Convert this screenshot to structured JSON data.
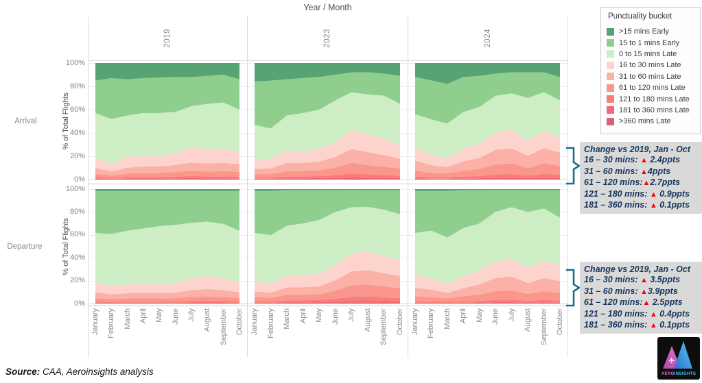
{
  "title": "Year / Month",
  "row_labels": [
    "Arrival",
    "Departure"
  ],
  "ylabel": "% of Total Flights",
  "legend": {
    "title": "Punctuality bucket"
  },
  "annotations": [
    {
      "title": "Change vs 2019, Jan - Oct",
      "lines": [
        "16 – 30 mins: ▲ 2.4ppts",
        "31 – 60 mins: ▲4ppts",
        "61 – 120 mins:▲2.7ppts",
        "121 – 180 mins: ▲ 0.9ppts",
        "181 – 360 mins: ▲ 0.1ppts"
      ]
    },
    {
      "title": "Change vs 2019, Jan - Oct",
      "lines": [
        "16 – 30 mins: ▲ 3.5ppts",
        "31 – 60 mins: ▲3.9ppts",
        "61 – 120 mins:▲ 2.5ppts",
        "121 – 180 mins: ▲ 0.4ppts",
        "181 – 360 mins: ▲ 0.1ppts"
      ]
    }
  ],
  "source": {
    "label": "Source:",
    "text": " CAA, Aeroinsights analysis"
  },
  "logo": {
    "text_left": "AERO",
    "text_right": "INSIGHTS"
  },
  "chart_data": {
    "type": "area",
    "stacked": true,
    "units": "percent_of_total_flights",
    "title": "Year / Month",
    "ylabel": "% of Total Flights",
    "ylim": [
      0,
      100
    ],
    "yticks": [
      "100%",
      "80%",
      "60%",
      "40%",
      "20%",
      "0%"
    ],
    "grid": true,
    "legend_position": "top-right",
    "x": [
      "January",
      "February",
      "March",
      "April",
      "May",
      "June",
      "July",
      "August",
      "September",
      "October"
    ],
    "rows": [
      "Arrival",
      "Departure"
    ],
    "columns": [
      "2019",
      "2023",
      "2024"
    ],
    "buckets": [
      {
        "label": ">15 mins Early",
        "color": "#57A373"
      },
      {
        "label": "15 to 1 mins Early",
        "color": "#90CE8E"
      },
      {
        "label": "0 to 15 mins Late",
        "color": "#CDEDC5"
      },
      {
        "label": "16 to 30 mins Late",
        "color": "#FCD4CD"
      },
      {
        "label": "31 to 60 mins Late",
        "color": "#FBB1A5"
      },
      {
        "label": "61 to 120 mins Late",
        "color": "#FA968C"
      },
      {
        "label": "121 to 180 mins Late",
        "color": "#F87E78"
      },
      {
        "label": "181 to 360 mins Late",
        "color": "#F16877"
      },
      {
        "label": ">360 mins Late",
        "color": "#D75F80"
      }
    ],
    "panels": {
      "arrival_2019": [
        [
          15,
          13,
          14,
          13,
          12.5,
          12,
          12,
          11,
          10,
          14
        ],
        [
          28,
          35,
          31,
          30,
          30.5,
          30,
          25,
          24,
          24,
          26
        ],
        [
          38,
          39,
          35,
          37,
          37,
          35.5,
          35.5,
          39,
          40,
          36
        ],
        [
          9,
          6,
          9.5,
          9,
          9,
          10,
          13,
          12,
          12,
          11
        ],
        [
          5,
          3.5,
          5,
          5.5,
          5.5,
          6,
          7,
          7,
          7,
          6.5
        ],
        [
          3,
          2,
          3,
          3.5,
          3.5,
          4,
          4.5,
          4,
          4.5,
          4
        ],
        [
          1.2,
          0.8,
          1.2,
          1.3,
          1.3,
          1.5,
          1.8,
          1.6,
          1.7,
          1.5
        ],
        [
          0.6,
          0.4,
          0.6,
          0.6,
          0.6,
          0.7,
          0.9,
          0.8,
          0.8,
          0.7
        ],
        [
          0.3,
          0.2,
          0.3,
          0.3,
          0.3,
          0.3,
          0.4,
          0.3,
          0.3,
          0.3
        ]
      ],
      "arrival_2023": [
        [
          16,
          15,
          14,
          13,
          12,
          10,
          8,
          8,
          9,
          11
        ],
        [
          37,
          41,
          31,
          30,
          28,
          22,
          17,
          19,
          19,
          24
        ],
        [
          31,
          26,
          30,
          33,
          33.5,
          35.5,
          32.5,
          34.5,
          37,
          35
        ],
        [
          7,
          8,
          11,
          10,
          11,
          13,
          16,
          15,
          14,
          12
        ],
        [
          4.5,
          5,
          7,
          7,
          7.5,
          9,
          12,
          11,
          10,
          8.5
        ],
        [
          3,
          3,
          4.5,
          4.5,
          5,
          6.5,
          9,
          8,
          7,
          6
        ],
        [
          1,
          1,
          1.6,
          1.6,
          1.8,
          2.3,
          3.2,
          2.7,
          2.4,
          2
        ],
        [
          0.4,
          0.5,
          0.8,
          0.8,
          0.9,
          1.1,
          1.5,
          1.3,
          1.1,
          0.9
        ],
        [
          0.2,
          0.2,
          0.3,
          0.3,
          0.3,
          0.4,
          0.6,
          0.5,
          0.4,
          0.4
        ]
      ],
      "arrival_2024": [
        [
          12,
          15,
          18,
          12,
          11,
          9,
          8,
          8,
          8,
          12
        ],
        [
          32,
          33.5,
          34,
          30,
          26.5,
          19,
          18,
          22,
          17,
          20
        ],
        [
          29,
          30.5,
          30,
          31.5,
          31.5,
          31,
          31,
          36.5,
          33,
          31.5
        ],
        [
          11,
          9,
          7.5,
          11,
          12,
          15,
          16,
          13,
          15,
          13.5
        ],
        [
          8.5,
          6.5,
          5.5,
          8,
          9.5,
          12.5,
          13,
          10.5,
          13,
          11.5
        ],
        [
          5,
          4,
          3.5,
          5,
          6,
          8.5,
          9,
          6.5,
          9,
          7.5
        ],
        [
          1.6,
          1.2,
          1,
          1.6,
          2,
          3,
          3.2,
          2.2,
          3.3,
          2.8
        ],
        [
          0.7,
          0.5,
          0.5,
          0.7,
          0.8,
          1,
          1.1,
          0.8,
          1.1,
          0.9
        ],
        [
          0.3,
          0.2,
          0.2,
          0.3,
          0.3,
          0.4,
          0.5,
          0.4,
          0.5,
          0.4
        ]
      ],
      "departure_2019": [
        [
          1.5,
          1.5,
          1.5,
          1.5,
          1.5,
          1.5,
          1.5,
          1.5,
          1.5,
          1.5
        ],
        [
          37,
          38,
          35,
          33,
          31,
          30,
          28,
          27,
          29,
          35
        ],
        [
          43,
          45.5,
          47,
          49,
          51,
          51,
          48.5,
          47.5,
          47.5,
          45
        ],
        [
          9,
          7.5,
          8,
          8,
          8,
          8.5,
          10.5,
          11.5,
          10.5,
          9
        ],
        [
          5,
          4,
          4.5,
          4.5,
          4.5,
          4.8,
          6,
          6.5,
          6,
          5
        ],
        [
          3,
          2.5,
          2.8,
          2.8,
          2.8,
          3,
          3.6,
          4,
          3.6,
          3
        ],
        [
          1.1,
          0.9,
          1,
          1,
          1,
          1.1,
          1.3,
          1.4,
          1.3,
          1.1
        ],
        [
          0.5,
          0.4,
          0.5,
          0.5,
          0.5,
          0.5,
          0.6,
          0.6,
          0.6,
          0.5
        ],
        [
          0.2,
          0.2,
          0.2,
          0.2,
          0.2,
          0.2,
          0.3,
          0.3,
          0.3,
          0.2
        ]
      ],
      "departure_2023": [
        [
          1.5,
          1.5,
          1,
          1,
          1,
          1,
          0.8,
          1,
          1,
          1
        ],
        [
          37,
          39,
          31,
          29,
          26,
          19,
          15,
          14.5,
          17,
          21
        ],
        [
          43,
          42.5,
          43.3,
          45.3,
          47,
          46.7,
          40,
          38.5,
          40.5,
          40.5
        ],
        [
          8.5,
          8,
          10.5,
          10.5,
          11,
          13,
          16,
          16.5,
          15,
          13.5
        ],
        [
          5,
          4.5,
          6.5,
          6.5,
          7,
          9,
          12,
          12.5,
          11.5,
          10.5
        ],
        [
          3.5,
          3.2,
          4.8,
          4.8,
          5,
          7,
          10,
          10.5,
          9.5,
          8.5
        ],
        [
          1.3,
          1.1,
          1.8,
          1.8,
          1.9,
          2.6,
          3.6,
          3.8,
          3.4,
          3
        ],
        [
          0.6,
          0.5,
          0.8,
          0.8,
          0.9,
          1.2,
          1.6,
          1.7,
          1.5,
          1.3
        ],
        [
          0.2,
          0.2,
          0.3,
          0.3,
          0.3,
          0.5,
          0.7,
          0.7,
          0.6,
          0.5
        ]
      ],
      "departure_2024": [
        [
          1.5,
          1.5,
          1.5,
          1,
          1,
          0.8,
          0.8,
          1,
          1,
          1
        ],
        [
          37,
          35,
          41,
          33,
          29,
          19,
          15,
          19,
          16,
          24
        ],
        [
          37,
          42,
          40.6,
          42,
          40.6,
          42.8,
          44.5,
          48.5,
          45.8,
          41.3
        ],
        [
          11,
          10,
          8,
          10.5,
          12.5,
          15,
          16,
          13.5,
          15,
          14
        ],
        [
          7.5,
          6.5,
          5,
          7,
          9,
          11.5,
          12,
          9.5,
          11.5,
          10.5
        ],
        [
          4.5,
          4,
          3,
          4.5,
          5.5,
          7.5,
          8,
          6,
          7.5,
          6.5
        ],
        [
          1.2,
          1,
          0.8,
          1.2,
          1.5,
          2,
          2.2,
          1.6,
          2,
          1.7
        ],
        [
          0.5,
          0.4,
          0.4,
          0.5,
          0.6,
          0.8,
          0.9,
          0.6,
          0.8,
          0.7
        ],
        [
          0.2,
          0.2,
          0.2,
          0.2,
          0.3,
          0.4,
          0.4,
          0.3,
          0.4,
          0.3
        ]
      ]
    }
  }
}
